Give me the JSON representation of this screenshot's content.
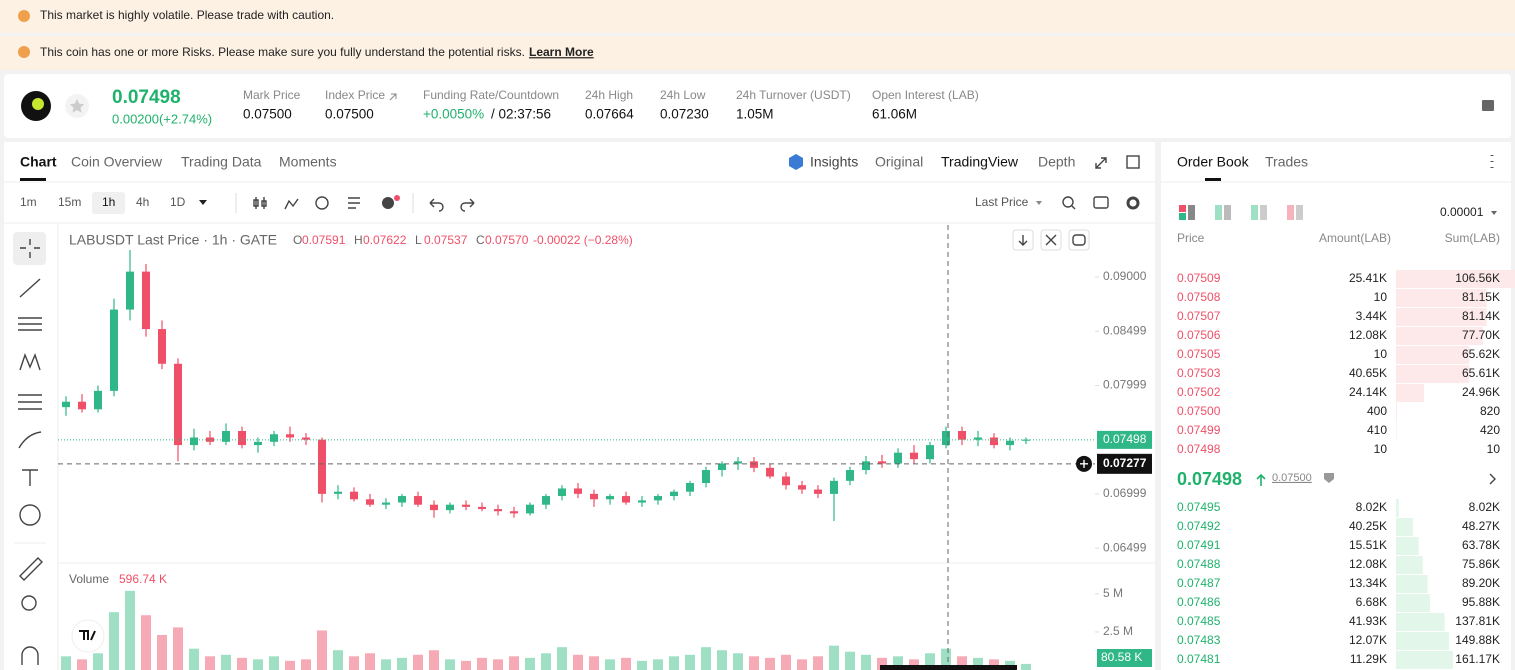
{
  "banners": [
    "This market is highly volatile. Please trade with caution.",
    "This coin has one or more Risks. Please make sure you fully understand the potential risks."
  ],
  "learn_more": "Learn More",
  "ticker": {
    "price": "0.07498",
    "change": "0.00200(+2.74%)",
    "stats": [
      {
        "label": "Mark Price",
        "value": "0.07500"
      },
      {
        "label": "Index Price",
        "value": "0.07500"
      },
      {
        "label": "Funding Rate/Countdown",
        "value": "+0.0050%",
        "extra": "/ 02:37:56"
      },
      {
        "label": "24h High",
        "value": "0.07664"
      },
      {
        "label": "24h Low",
        "value": "0.07230"
      },
      {
        "label": "24h Turnover (USDT)",
        "value": "1.05M"
      },
      {
        "label": "Open Interest (LAB)",
        "value": "61.06M"
      }
    ]
  },
  "tabs": [
    "Chart",
    "Coin Overview",
    "Trading Data",
    "Moments"
  ],
  "view_tabs": [
    "Insights",
    "Original",
    "TradingView",
    "Depth"
  ],
  "intervals": [
    "1m",
    "15m",
    "1h",
    "4h",
    "1D"
  ],
  "price_source": "Last Price",
  "chart_data": {
    "type": "candlestick",
    "title": "LABUSDT Last Price · 1h · GATE",
    "ohlc_legend": [
      {
        "label": "O",
        "value": "0.07591"
      },
      {
        "label": "H",
        "value": "0.07622"
      },
      {
        "label": "L",
        "value": "0.07537"
      },
      {
        "label": "C",
        "value": "0.07570"
      }
    ],
    "change": "-0.00022 (−0.28%)",
    "up_color": "#2fb787",
    "down_color": "#ef5068",
    "open": [
      0.078,
      0.0785,
      0.0778,
      0.0795,
      0.087,
      0.0905,
      0.0852,
      0.082,
      0.0745,
      0.0752,
      0.0748,
      0.0758,
      0.0745,
      0.0748,
      0.0755,
      0.0752,
      0.075,
      0.07,
      0.0702,
      0.0695,
      0.069,
      0.0692,
      0.0698,
      0.069,
      0.0685,
      0.069,
      0.0688,
      0.0686,
      0.0684,
      0.0682,
      0.069,
      0.0698,
      0.0705,
      0.07,
      0.0695,
      0.0698,
      0.0692,
      0.0694,
      0.0698,
      0.0702,
      0.071,
      0.0722,
      0.0728,
      0.073,
      0.0724,
      0.0716,
      0.0708,
      0.0704,
      0.07,
      0.0712,
      0.0722,
      0.073,
      0.0728,
      0.0738,
      0.0732,
      0.0745,
      0.0758,
      0.075,
      0.0752,
      0.0745,
      0.0749
    ],
    "high": [
      0.079,
      0.0792,
      0.08,
      0.088,
      0.0925,
      0.0912,
      0.086,
      0.0825,
      0.076,
      0.0758,
      0.0765,
      0.0762,
      0.0752,
      0.0758,
      0.0762,
      0.0756,
      0.0752,
      0.0708,
      0.0706,
      0.07,
      0.0696,
      0.07,
      0.0702,
      0.0694,
      0.0692,
      0.0694,
      0.0692,
      0.069,
      0.0688,
      0.0692,
      0.07,
      0.0708,
      0.071,
      0.0704,
      0.07,
      0.0702,
      0.0698,
      0.07,
      0.0704,
      0.0712,
      0.0725,
      0.073,
      0.0734,
      0.0734,
      0.0728,
      0.072,
      0.0712,
      0.0708,
      0.0715,
      0.0725,
      0.0735,
      0.0736,
      0.0742,
      0.0745,
      0.0748,
      0.0762,
      0.0762,
      0.0758,
      0.0756,
      0.0752,
      0.0752
    ],
    "low": [
      0.0772,
      0.0775,
      0.0775,
      0.079,
      0.086,
      0.0845,
      0.0815,
      0.073,
      0.074,
      0.0745,
      0.0745,
      0.0742,
      0.0738,
      0.0744,
      0.0748,
      0.0745,
      0.0692,
      0.0695,
      0.0693,
      0.0688,
      0.0686,
      0.0688,
      0.0688,
      0.0678,
      0.0682,
      0.0685,
      0.0684,
      0.068,
      0.0678,
      0.068,
      0.0686,
      0.0694,
      0.0696,
      0.0688,
      0.069,
      0.069,
      0.0688,
      0.069,
      0.0694,
      0.0698,
      0.0706,
      0.0716,
      0.0722,
      0.072,
      0.0714,
      0.0704,
      0.07,
      0.0696,
      0.0675,
      0.0708,
      0.0718,
      0.0724,
      0.0724,
      0.0728,
      0.0728,
      0.0742,
      0.0745,
      0.0744,
      0.0742,
      0.074,
      0.0746
    ],
    "close": [
      0.0785,
      0.0778,
      0.0795,
      0.087,
      0.0905,
      0.0852,
      0.082,
      0.0745,
      0.0752,
      0.0748,
      0.0758,
      0.0745,
      0.0748,
      0.0755,
      0.0752,
      0.075,
      0.07,
      0.0702,
      0.0695,
      0.069,
      0.0692,
      0.0698,
      0.069,
      0.0685,
      0.069,
      0.0688,
      0.0686,
      0.0684,
      0.0682,
      0.069,
      0.0698,
      0.0705,
      0.07,
      0.0695,
      0.0698,
      0.0692,
      0.0694,
      0.0698,
      0.0702,
      0.071,
      0.0722,
      0.0728,
      0.073,
      0.0724,
      0.0716,
      0.0708,
      0.0704,
      0.07,
      0.0712,
      0.0722,
      0.073,
      0.0728,
      0.0738,
      0.0732,
      0.0745,
      0.0758,
      0.075,
      0.0752,
      0.0745,
      0.0749,
      0.075
    ],
    "ylim": [
      0.0639,
      0.0948
    ],
    "yticks": [
      {
        "value": 0.09,
        "label": "0.09000"
      },
      {
        "value": 0.08499,
        "label": "0.08499"
      },
      {
        "value": 0.07999,
        "label": "0.07999"
      },
      {
        "value": 0.06999,
        "label": "0.06999"
      },
      {
        "value": 0.06499,
        "label": "0.06499"
      }
    ],
    "last_price": {
      "value": 0.07498,
      "label": "0.07498"
    },
    "crosshair_price": {
      "value": 0.07277,
      "label": "0.07277"
    },
    "volume": {
      "title": "Volume",
      "current": "596.74 K",
      "last_label": "80.58 K",
      "values": [
        900000,
        700000,
        1100000,
        3800000,
        5200000,
        3600000,
        2300000,
        2800000,
        1400000,
        900000,
        1000000,
        800000,
        700000,
        900000,
        600000,
        700000,
        2600000,
        1300000,
        900000,
        1100000,
        700000,
        800000,
        1000000,
        1300000,
        700000,
        600000,
        800000,
        700000,
        900000,
        800000,
        1100000,
        1500000,
        1000000,
        900000,
        700000,
        800000,
        600000,
        700000,
        900000,
        1000000,
        1500000,
        1300000,
        1100000,
        900000,
        800000,
        1000000,
        700000,
        900000,
        1600000,
        1200000,
        1000000,
        800000,
        900000,
        700000,
        1100000,
        1400000,
        900000,
        800000,
        700000,
        600000,
        400000
      ],
      "ylim": [
        0,
        6700000
      ],
      "yticks": [
        {
          "value": 5000000,
          "label": "5 M"
        },
        {
          "value": 2500000,
          "label": "2.5 M"
        }
      ]
    }
  },
  "order_book": {
    "tabs": [
      "Order Book",
      "Trades"
    ],
    "precision": "0.00001",
    "headers": [
      "Price",
      "Amount(LAB)",
      "Sum(LAB)"
    ],
    "asks": [
      {
        "price": "0.07509",
        "amount": "25.41K",
        "sum": {
          "value": 106560,
          "label": "106.56K"
        }
      },
      {
        "price": "0.07508",
        "amount": "10",
        "sum": {
          "value": 81150,
          "label": "81.15K"
        }
      },
      {
        "price": "0.07507",
        "amount": "3.44K",
        "sum": {
          "value": 81140,
          "label": "81.14K"
        }
      },
      {
        "price": "0.07506",
        "amount": "12.08K",
        "sum": {
          "value": 77700,
          "label": "77.70K"
        }
      },
      {
        "price": "0.07505",
        "amount": "10",
        "sum": {
          "value": 65620,
          "label": "65.62K"
        }
      },
      {
        "price": "0.07503",
        "amount": "40.65K",
        "sum": {
          "value": 65610,
          "label": "65.61K"
        }
      },
      {
        "price": "0.07502",
        "amount": "24.14K",
        "sum": {
          "value": 24960,
          "label": "24.96K"
        }
      },
      {
        "price": "0.07500",
        "amount": "400",
        "sum": 820
      },
      {
        "price": "0.07499",
        "amount": "410",
        "sum": 420
      },
      {
        "price": "0.07498",
        "amount": "10",
        "sum": 10
      }
    ],
    "mid_price": "0.07498",
    "mark_price": "0.07500",
    "bids": [
      {
        "price": "0.07495",
        "amount": "8.02K",
        "sum": {
          "value": 8020,
          "label": "8.02K"
        }
      },
      {
        "price": "0.07492",
        "amount": "40.25K",
        "sum": {
          "value": 48270,
          "label": "48.27K"
        }
      },
      {
        "price": "0.07491",
        "amount": "15.51K",
        "sum": {
          "value": 63780,
          "label": "63.78K"
        }
      },
      {
        "price": "0.07488",
        "amount": "12.08K",
        "sum": {
          "value": 75860,
          "label": "75.86K"
        }
      },
      {
        "price": "0.07487",
        "amount": "13.34K",
        "sum": {
          "value": 89200,
          "label": "89.20K"
        }
      },
      {
        "price": "0.07486",
        "amount": "6.68K",
        "sum": {
          "value": 95880,
          "label": "95.88K"
        }
      },
      {
        "price": "0.07485",
        "amount": "41.93K",
        "sum": {
          "value": 137810,
          "label": "137.81K"
        }
      },
      {
        "price": "0.07483",
        "amount": "12.07K",
        "sum": {
          "value": 149880,
          "label": "149.88K"
        }
      },
      {
        "price": "0.07481",
        "amount": "11.29K",
        "sum": {
          "value": 161170,
          "label": "161.17K"
        }
      }
    ]
  }
}
